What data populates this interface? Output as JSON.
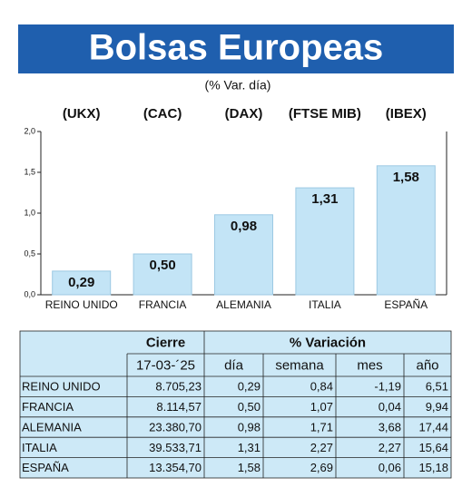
{
  "chart_data": {
    "type": "bar",
    "title": "Bolsas Europeas",
    "subtitle": "(% Var. día)",
    "index_labels": [
      "(UKX)",
      "(CAC)",
      "(DAX)",
      "(FTSE MIB)",
      "(IBEX)"
    ],
    "categories": [
      "REINO UNIDO",
      "FRANCIA",
      "ALEMANIA",
      "ITALIA",
      "ESPAÑA"
    ],
    "values": [
      0.29,
      0.5,
      0.98,
      1.31,
      1.58
    ],
    "value_labels": [
      "0,29",
      "0,50",
      "0,98",
      "1,31",
      "1,58"
    ],
    "color": "#c3e4f6",
    "ylim": [
      0,
      2
    ],
    "yticks": [
      {
        "value": 0,
        "label": "0,0"
      },
      {
        "value": 0.5,
        "label": "0,5"
      },
      {
        "value": 1,
        "label": "1,0"
      },
      {
        "value": 1.5,
        "label": "1,5"
      },
      {
        "value": 2,
        "label": "2,0"
      }
    ],
    "grid": false
  },
  "table": {
    "header": {
      "cierre": "Cierre",
      "variacion": "% Variación",
      "date": "17-03-´25",
      "columns": [
        "día",
        "semana",
        "mes",
        "año"
      ]
    },
    "rows": [
      [
        "REINO UNIDO",
        "8.705,23",
        "0,29",
        "0,84",
        "-1,19",
        "6,51"
      ],
      [
        "FRANCIA",
        "8.114,57",
        "0,50",
        "1,07",
        "0,04",
        "9,94"
      ],
      [
        "ALEMANIA",
        "23.380,70",
        "0,98",
        "1,71",
        "3,68",
        "17,44"
      ],
      [
        "ITALIA",
        "39.533,71",
        "1,31",
        "2,27",
        "2,27",
        "15,64"
      ],
      [
        "ESPAÑA",
        "13.354,70",
        "1,58",
        "2,69",
        "0,06",
        "15,18"
      ]
    ]
  }
}
